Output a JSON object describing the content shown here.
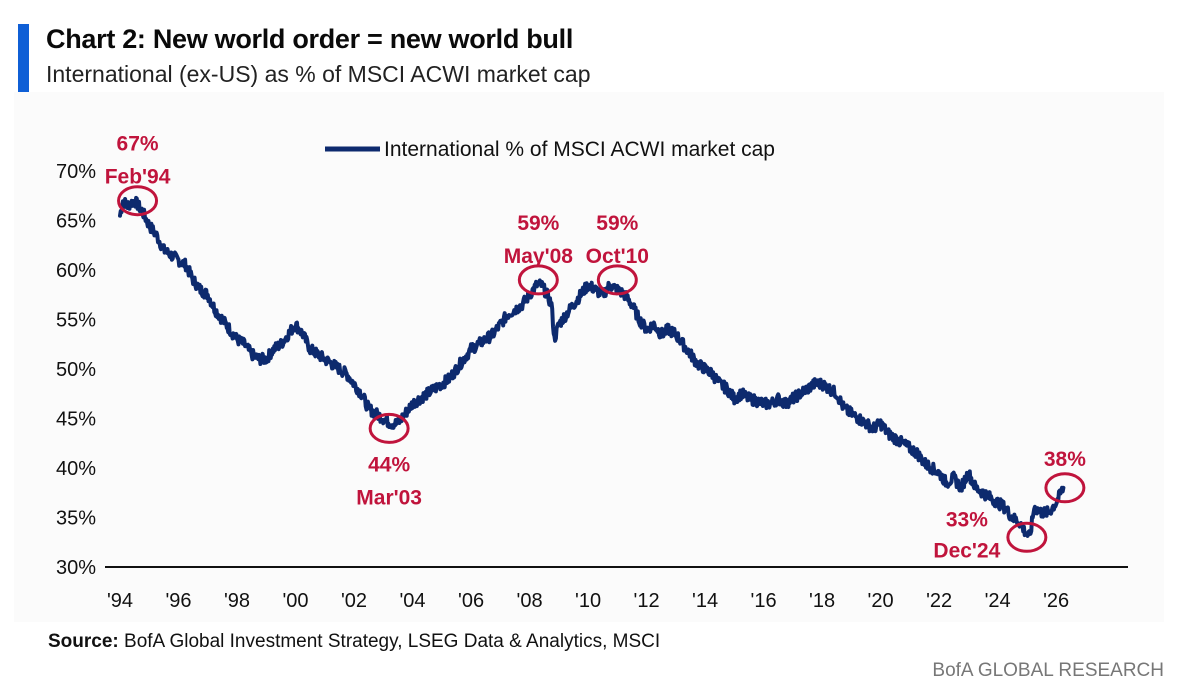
{
  "header": {
    "title": "Chart 2: New world order = new world bull",
    "subtitle": "International (ex-US) as % of MSCI ACWI market cap"
  },
  "footer": {
    "source_label": "Source:",
    "source_text": "BofA Global Investment Strategy, LSEG Data & Analytics, MSCI",
    "brand": "BofA GLOBAL RESEARCH"
  },
  "colors": {
    "line": "#0d2a6e",
    "annotation": "#c0143c",
    "accent": "#0f5fd6"
  },
  "chart_data": {
    "type": "line",
    "title": "Chart 2: New world order = new world bull",
    "subtitle": "International (ex-US) as % of MSCI ACWI market cap",
    "legend": {
      "label": "International % of MSCI ACWI market cap",
      "position": "top-center"
    },
    "xlabel": "",
    "ylabel": "",
    "xlim": [
      1994,
      2027.5
    ],
    "ylim": [
      30,
      70
    ],
    "x_ticks": [
      {
        "x": 1994,
        "label": "'94"
      },
      {
        "x": 1996,
        "label": "'96"
      },
      {
        "x": 1998,
        "label": "'98"
      },
      {
        "x": 2000,
        "label": "'00"
      },
      {
        "x": 2002,
        "label": "'02"
      },
      {
        "x": 2004,
        "label": "'04"
      },
      {
        "x": 2006,
        "label": "'06"
      },
      {
        "x": 2008,
        "label": "'08"
      },
      {
        "x": 2010,
        "label": "'10"
      },
      {
        "x": 2012,
        "label": "'12"
      },
      {
        "x": 2014,
        "label": "'14"
      },
      {
        "x": 2016,
        "label": "'16"
      },
      {
        "x": 2018,
        "label": "'18"
      },
      {
        "x": 2020,
        "label": "'20"
      },
      {
        "x": 2022,
        "label": "'22"
      },
      {
        "x": 2024,
        "label": "'24"
      },
      {
        "x": 2026,
        "label": "'26"
      }
    ],
    "y_ticks": [
      {
        "y": 30,
        "label": "30%"
      },
      {
        "y": 35,
        "label": "35%"
      },
      {
        "y": 40,
        "label": "40%"
      },
      {
        "y": 45,
        "label": "45%"
      },
      {
        "y": 50,
        "label": "50%"
      },
      {
        "y": 55,
        "label": "55%"
      },
      {
        "y": 60,
        "label": "60%"
      },
      {
        "y": 65,
        "label": "65%"
      },
      {
        "y": 70,
        "label": "70%"
      }
    ],
    "grid": false,
    "series": [
      {
        "name": "International % of MSCI ACWI market cap",
        "x": [
          1994.0,
          1994.1,
          1994.25,
          1994.5,
          1994.75,
          1995.0,
          1995.25,
          1995.5,
          1995.75,
          1996.0,
          1996.25,
          1996.5,
          1996.75,
          1997.0,
          1997.25,
          1997.5,
          1997.75,
          1998.0,
          1998.25,
          1998.5,
          1998.75,
          1999.0,
          1999.25,
          1999.5,
          1999.75,
          2000.0,
          2000.25,
          2000.5,
          2000.75,
          2001.0,
          2001.25,
          2001.5,
          2001.75,
          2002.0,
          2002.25,
          2002.5,
          2002.75,
          2003.0,
          2003.25,
          2003.5,
          2003.75,
          2004.0,
          2004.25,
          2004.5,
          2004.75,
          2005.0,
          2005.25,
          2005.5,
          2005.75,
          2006.0,
          2006.25,
          2006.5,
          2006.75,
          2007.0,
          2007.25,
          2007.5,
          2007.75,
          2008.0,
          2008.25,
          2008.4,
          2008.6,
          2008.75,
          2008.85,
          2009.0,
          2009.25,
          2009.5,
          2009.75,
          2010.0,
          2010.25,
          2010.5,
          2010.75,
          2011.0,
          2011.25,
          2011.5,
          2011.75,
          2012.0,
          2012.25,
          2012.5,
          2012.75,
          2013.0,
          2013.25,
          2013.5,
          2013.75,
          2014.0,
          2014.25,
          2014.5,
          2014.75,
          2015.0,
          2015.25,
          2015.5,
          2015.75,
          2016.0,
          2016.25,
          2016.5,
          2016.75,
          2017.0,
          2017.25,
          2017.5,
          2017.75,
          2018.0,
          2018.25,
          2018.5,
          2018.75,
          2019.0,
          2019.25,
          2019.5,
          2019.75,
          2020.0,
          2020.25,
          2020.5,
          2020.75,
          2021.0,
          2021.25,
          2021.5,
          2021.75,
          2022.0,
          2022.25,
          2022.5,
          2022.75,
          2023.0,
          2023.25,
          2023.5,
          2023.75,
          2024.0,
          2024.25,
          2024.5,
          2024.75,
          2024.95,
          2025.1,
          2025.25,
          2025.5,
          2025.75,
          2026.0,
          2026.25
        ],
        "y": [
          65.5,
          67.0,
          66.5,
          67.0,
          66.0,
          64.5,
          63.5,
          62.0,
          61.5,
          61.0,
          60.5,
          59.0,
          58.0,
          57.5,
          56.0,
          55.0,
          54.0,
          53.0,
          52.5,
          51.5,
          51.0,
          51.0,
          52.0,
          52.5,
          53.5,
          54.5,
          53.5,
          52.0,
          51.5,
          51.0,
          50.5,
          50.0,
          49.5,
          48.5,
          47.5,
          46.0,
          45.5,
          45.0,
          44.5,
          44.5,
          45.5,
          46.5,
          47.0,
          47.5,
          48.0,
          48.5,
          49.0,
          50.0,
          51.0,
          52.0,
          52.5,
          53.0,
          53.5,
          54.5,
          55.5,
          56.0,
          56.5,
          57.5,
          58.5,
          58.5,
          57.5,
          56.5,
          53.0,
          54.5,
          55.5,
          56.5,
          57.5,
          58.5,
          58.0,
          57.5,
          58.5,
          58.0,
          57.5,
          56.5,
          55.0,
          54.0,
          54.5,
          53.5,
          54.0,
          53.5,
          52.5,
          51.5,
          50.5,
          50.0,
          49.5,
          48.5,
          48.0,
          47.0,
          47.5,
          47.0,
          46.8,
          46.5,
          46.5,
          47.0,
          46.5,
          47.0,
          47.5,
          48.0,
          48.5,
          48.5,
          48.0,
          47.5,
          46.0,
          45.5,
          45.0,
          44.5,
          44.0,
          44.5,
          43.5,
          43.0,
          42.5,
          42.0,
          41.5,
          40.5,
          40.0,
          39.5,
          38.5,
          39.0,
          38.0,
          39.5,
          38.0,
          37.5,
          37.0,
          36.5,
          36.0,
          35.0,
          34.5,
          33.5,
          33.0,
          36.0,
          35.5,
          35.5,
          36.5,
          38.0
        ]
      }
    ],
    "annotations": [
      {
        "x": 1994.6,
        "y": 67,
        "value_label": "67%",
        "date_label": "Feb'94"
      },
      {
        "x": 2003.2,
        "y": 44,
        "value_label": "44%",
        "date_label": "Mar'03"
      },
      {
        "x": 2008.3,
        "y": 59,
        "value_label": "59%",
        "date_label": "May'08"
      },
      {
        "x": 2011.0,
        "y": 59,
        "value_label": "59%",
        "date_label": "Oct'10"
      },
      {
        "x": 2025.0,
        "y": 33,
        "value_label": "33%",
        "date_label": "Dec'24"
      },
      {
        "x": 2026.3,
        "y": 38,
        "value_label": "38%",
        "date_label": ""
      }
    ]
  }
}
